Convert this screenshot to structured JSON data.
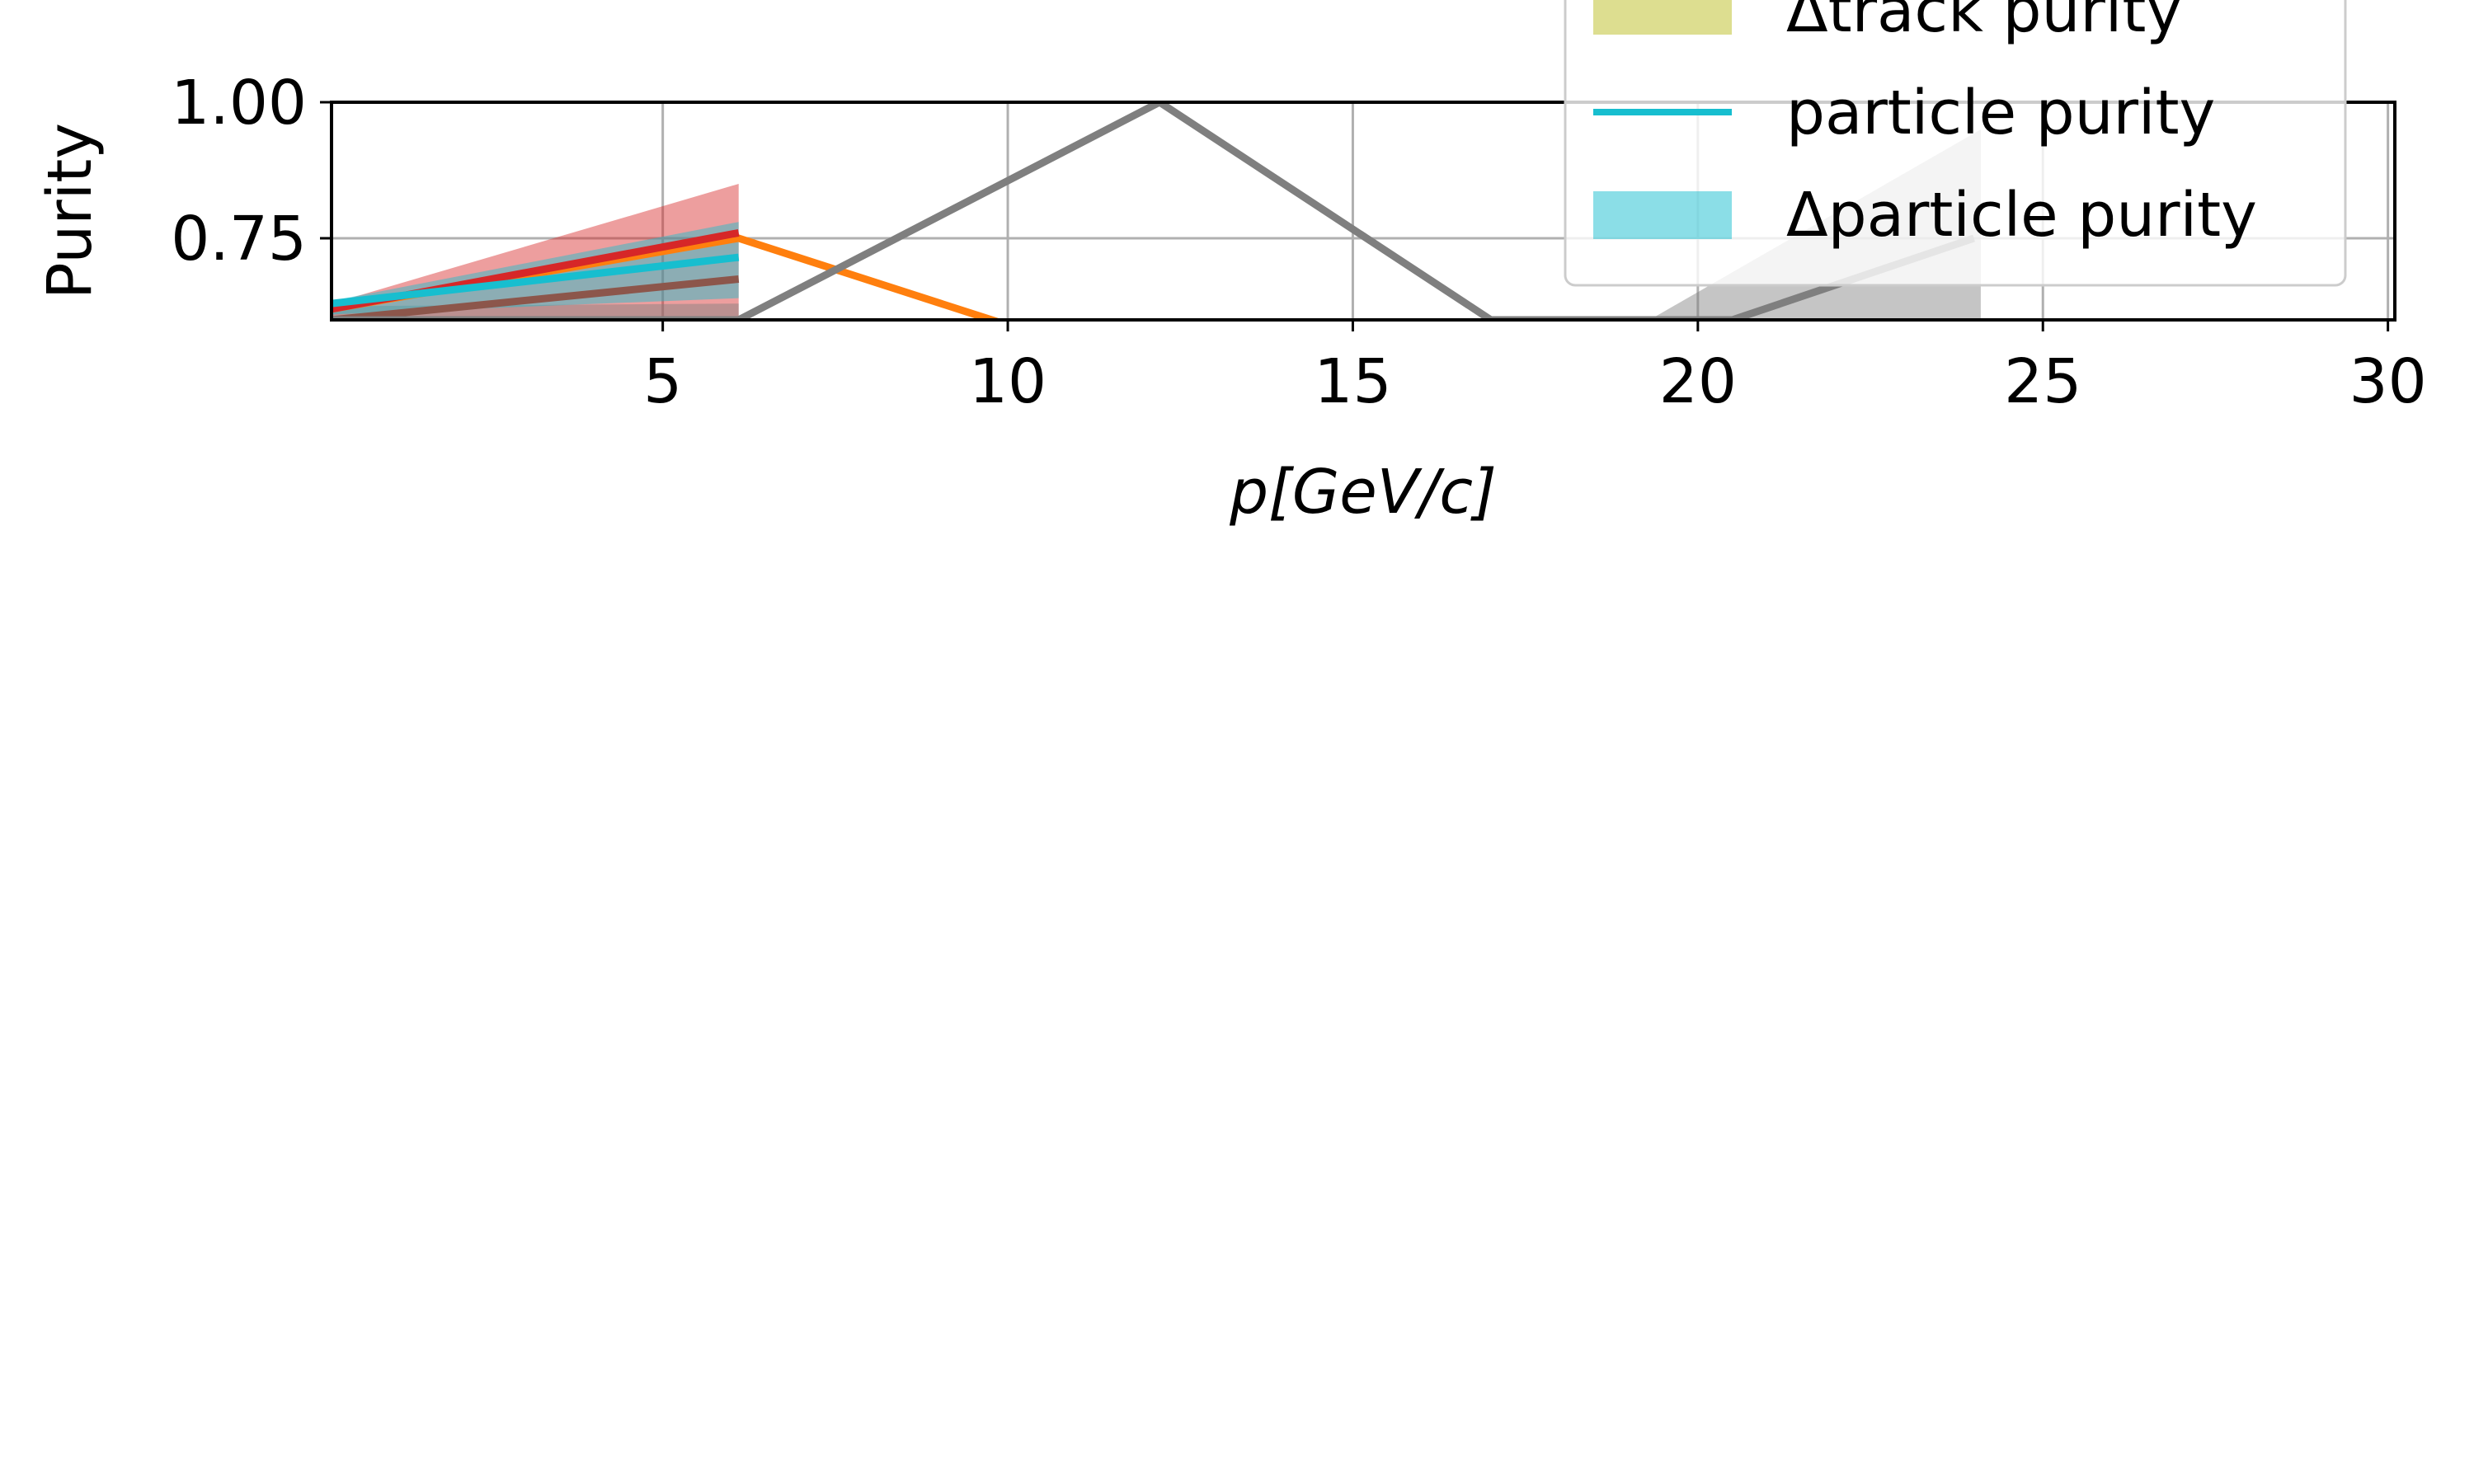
{
  "chart_data": {
    "type": "line",
    "xlabel": "p[GeV/c]",
    "ylabel": "Purity",
    "xlim": [
      0.2,
      30.1
    ],
    "ylim": [
      0.6,
      1.0
    ],
    "xticks": [
      5,
      10,
      15,
      20,
      25,
      30
    ],
    "xtick_labels": [
      "5",
      "10",
      "15",
      "20",
      "25",
      "30"
    ],
    "yticks": [
      0.75,
      1.0
    ],
    "ytick_labels": [
      "0.75",
      "1.00"
    ],
    "grid": true,
    "legend": {
      "placement": "top-right",
      "entries": [
        {
          "label": "Δtrack purity",
          "kind": "band",
          "color": "#bcbd22"
        },
        {
          "label": "particle purity",
          "kind": "line",
          "color": "#17becf"
        },
        {
          "label": "Δparticle purity",
          "kind": "band",
          "color": "#17becf"
        }
      ]
    },
    "series": [
      {
        "color": "#ff7f0e",
        "kind": "line",
        "x": [
          0.2,
          6.1,
          10.5
        ],
        "y": [
          0.62,
          0.75,
          0.57
        ]
      },
      {
        "color": "#d62728",
        "kind": "line",
        "x": [
          0.2,
          6.1
        ],
        "y": [
          0.62,
          0.76
        ]
      },
      {
        "color": "#d62728",
        "kind": "band",
        "x": [
          0.2,
          6.1
        ],
        "y_low": [
          0.6,
          0.6
        ],
        "y_high": [
          0.63,
          0.85
        ]
      },
      {
        "color": "#8c564b",
        "kind": "line",
        "x": [
          0.2,
          6.1
        ],
        "y": [
          0.6,
          0.675
        ]
      },
      {
        "color": "#7f7f7f",
        "kind": "line",
        "x": [
          0.2,
          6.1,
          12.2,
          17.0,
          20.5,
          24.0
        ],
        "y": [
          0.6,
          0.6,
          1.0,
          0.6,
          0.6,
          0.75
        ]
      },
      {
        "color": "#7f7f7f",
        "kind": "band",
        "x": [
          0.2,
          6.1
        ],
        "y_low": [
          0.6,
          0.6
        ],
        "y_high": [
          0.625,
          0.63
        ]
      },
      {
        "color": "#7f7f7f",
        "kind": "band",
        "x": [
          19.3,
          24.1
        ],
        "y_low": [
          0.6,
          0.6
        ],
        "y_high": [
          0.6,
          0.95
        ]
      },
      {
        "color": "#17becf",
        "kind": "line",
        "x": [
          0.2,
          6.1
        ],
        "y": [
          0.63,
          0.715
        ]
      },
      {
        "color": "#17becf",
        "kind": "band",
        "x": [
          0.2,
          6.1
        ],
        "y_low": [
          0.61,
          0.64
        ],
        "y_high": [
          0.635,
          0.78
        ]
      }
    ]
  }
}
